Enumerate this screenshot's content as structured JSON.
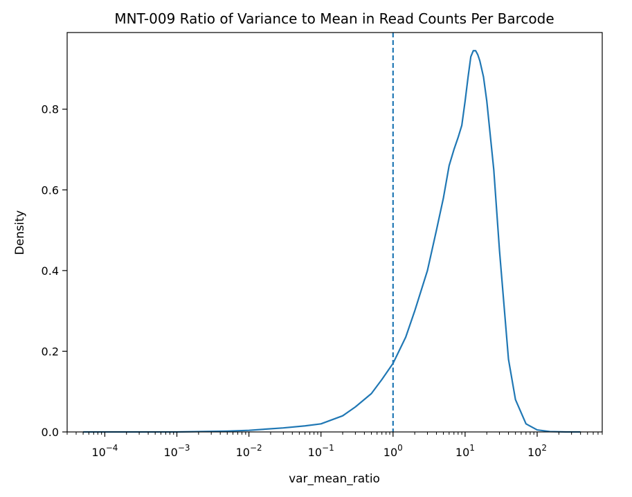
{
  "chart_data": {
    "type": "line",
    "title": "MNT-009 Ratio of Variance to Mean in Read Counts Per Barcode",
    "xlabel": "var_mean_ratio",
    "ylabel": "Density",
    "xscale": "log",
    "xlim": [
      3e-05,
      800
    ],
    "ylim": [
      0,
      0.99
    ],
    "grid": false,
    "legend": "none",
    "x_ticks": [
      {
        "value": 0.0001,
        "base": "10",
        "exp": "−4"
      },
      {
        "value": 0.001,
        "base": "10",
        "exp": "−3"
      },
      {
        "value": 0.01,
        "base": "10",
        "exp": "−2"
      },
      {
        "value": 0.1,
        "base": "10",
        "exp": "−1"
      },
      {
        "value": 1,
        "base": "10",
        "exp": "0"
      },
      {
        "value": 10,
        "base": "10",
        "exp": "1"
      },
      {
        "value": 100,
        "base": "10",
        "exp": "2"
      }
    ],
    "y_ticks": [
      {
        "value": 0.0,
        "label": "0.0"
      },
      {
        "value": 0.2,
        "label": "0.2"
      },
      {
        "value": 0.4,
        "label": "0.4"
      },
      {
        "value": 0.6,
        "label": "0.6"
      },
      {
        "value": 0.8,
        "label": "0.8"
      }
    ],
    "vline": {
      "x": 1,
      "style": "dashed",
      "color": "#1f77b4"
    },
    "series": [
      {
        "color": "#1f77b4",
        "x": [
          5e-05,
          0.0001,
          0.001,
          0.005,
          0.01,
          0.03,
          0.06,
          0.1,
          0.2,
          0.3,
          0.5,
          0.7,
          1.0,
          1.5,
          2.0,
          3.0,
          4.0,
          5.0,
          6.0,
          7.0,
          8.0,
          9.0,
          10.0,
          11.0,
          12.0,
          13.0,
          14.0,
          15.0,
          16.0,
          18.0,
          20.0,
          25.0,
          30.0,
          40.0,
          50.0,
          70.0,
          100.0,
          150.0,
          250.0,
          400.0
        ],
        "y": [
          0.0,
          0.0,
          0.0,
          0.002,
          0.004,
          0.01,
          0.015,
          0.02,
          0.04,
          0.062,
          0.095,
          0.13,
          0.17,
          0.235,
          0.3,
          0.4,
          0.5,
          0.58,
          0.66,
          0.7,
          0.73,
          0.76,
          0.82,
          0.88,
          0.93,
          0.945,
          0.945,
          0.935,
          0.92,
          0.88,
          0.82,
          0.65,
          0.45,
          0.18,
          0.08,
          0.02,
          0.005,
          0.001,
          0.0,
          0.0
        ]
      }
    ]
  }
}
